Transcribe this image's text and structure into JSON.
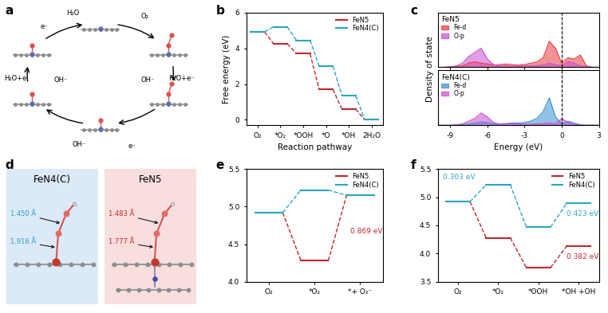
{
  "chart_data": [
    {
      "panel": "b",
      "type": "step",
      "xlabel": "Reaction pathway",
      "ylabel": "Free energy (eV)",
      "categories": [
        "O₂",
        "*O₂",
        "*OOH",
        "*O",
        "*OH",
        "2H₂O"
      ],
      "series": [
        {
          "name": "FeN5",
          "color": "#c1272d",
          "values": [
            4.92,
            4.25,
            3.7,
            1.7,
            0.6,
            0
          ]
        },
        {
          "name": "FeN4(C)",
          "color": "#2ba6c4",
          "values": [
            4.92,
            5.2,
            4.45,
            3.0,
            1.35,
            0
          ]
        }
      ],
      "ylim": [
        -0.3,
        6
      ],
      "yticks": [
        0,
        2,
        4,
        6
      ],
      "legend": "upper right"
    },
    {
      "panel": "c",
      "type": "area",
      "xlabel": "Energy (eV)",
      "ylabel": "Density of state",
      "x": [
        -10,
        -9.5,
        -9,
        -8.5,
        -8,
        -7.5,
        -7,
        -6.5,
        -6,
        -5.5,
        -5,
        -4.5,
        -4,
        -3.5,
        -3,
        -2.5,
        -2,
        -1.5,
        -1,
        -0.5,
        0,
        0.5,
        1,
        1.5,
        2,
        2.5,
        3
      ],
      "xlim": [
        -10,
        3
      ],
      "xticks": [
        -9,
        -6,
        -3,
        0,
        3
      ],
      "ylim": [
        0,
        2
      ],
      "tick_labels": "x",
      "fermi_level": 0,
      "legend": "upper left",
      "subplots": [
        {
          "name": "FeN5",
          "series": [
            {
              "name": "Fe-d",
              "color": "#e8393f",
              "values": [
                0,
                0,
                0.02,
                0.03,
                0.05,
                0.15,
                0.2,
                0.15,
                0.12,
                0.08,
                0.1,
                0.12,
                0.1,
                0.08,
                0.1,
                0.15,
                0.2,
                0.35,
                0.95,
                0.7,
                0.15,
                0.35,
                0.3,
                0.45,
                0.05,
                0,
                0
              ]
            },
            {
              "name": "O-p",
              "color": "#c84fd0",
              "values": [
                0,
                0,
                0.02,
                0.05,
                0.15,
                0.4,
                0.55,
                0.7,
                0.3,
                0.1,
                0.05,
                0.05,
                0.04,
                0.04,
                0.05,
                0.05,
                0.06,
                0.08,
                0.15,
                0.1,
                0.05,
                0.2,
                0.15,
                0.05,
                0.02,
                0,
                0
              ]
            }
          ]
        },
        {
          "name": "FeN4(C)",
          "series": [
            {
              "name": "Fe-d",
              "color": "#3a8fd0",
              "values": [
                0,
                0,
                0,
                0.01,
                0.02,
                0.05,
                0.08,
                0.12,
                0.1,
                0.05,
                0.05,
                0.06,
                0.08,
                0.08,
                0.1,
                0.15,
                0.25,
                0.5,
                1.0,
                0.3,
                0.05,
                0.15,
                0.08,
                0.02,
                0,
                0,
                0
              ]
            },
            {
              "name": "O-p",
              "color": "#c84fd0",
              "values": [
                0,
                0,
                0,
                0.02,
                0.05,
                0.15,
                0.25,
                0.45,
                0.3,
                0.1,
                0.04,
                0.05,
                0.06,
                0.05,
                0.04,
                0.04,
                0.05,
                0.06,
                0.08,
                0.05,
                0.25,
                0.1,
                0.03,
                0.01,
                0,
                0,
                0
              ]
            }
          ]
        }
      ]
    },
    {
      "panel": "e",
      "type": "step",
      "categories": [
        "O₂",
        "*O₂",
        "*+ O₂⁻"
      ],
      "series": [
        {
          "name": "FeN5",
          "color": "#c1272d",
          "values": [
            4.92,
            4.28,
            5.15
          ]
        },
        {
          "name": "FeN4(C)",
          "color": "#2ba6c4",
          "values": [
            4.92,
            5.22,
            5.15
          ]
        }
      ],
      "ylim": [
        4.0,
        5.5
      ],
      "yticks": [
        {
          "value": 4.0,
          "label": "4.0"
        },
        4.5,
        {
          "value": 5.0,
          "label": "5.0"
        },
        5.5
      ],
      "legend": "upper right",
      "annotations": [
        {
          "text": "0.869 eV",
          "series": "FeN5"
        }
      ]
    },
    {
      "panel": "f",
      "type": "step",
      "categories": [
        "O₂",
        "*O₂",
        "*OOH",
        "*OH +OH"
      ],
      "series": [
        {
          "name": "FeN5",
          "color": "#c1272d",
          "values": [
            4.92,
            4.28,
            3.75,
            4.13
          ]
        },
        {
          "name": "FeN4(C)",
          "color": "#2ba6c4",
          "values": [
            4.92,
            5.22,
            4.47,
            4.89
          ]
        }
      ],
      "ylim": [
        3.5,
        5.5
      ],
      "yticks": [
        3.5,
        {
          "value": 4.0,
          "label": "4.0"
        },
        4.5,
        {
          "value": 5.0,
          "label": "5.0"
        },
        5.5
      ],
      "legend": "upper right",
      "annotations": [
        {
          "text": "0.303 eV",
          "series": "FeN4(C)"
        },
        {
          "text": "0.423 eV",
          "series": "FeN4(C)"
        },
        {
          "text": "0.382 eV",
          "series": "FeN5"
        }
      ]
    }
  ],
  "diagrams": {
    "a": {
      "panel": "a",
      "labels": [
        "H₂O",
        "e⁻",
        "O₂",
        "H₂O+e⁻",
        "OH⁻",
        "OH⁻",
        "e⁻",
        "H₂O+e",
        "OH⁻"
      ]
    },
    "d": {
      "panel": "d",
      "structures": [
        {
          "name": "FeN4(C)",
          "bond_labels": [
            "1.450 Å",
            "1.916 Å"
          ]
        },
        {
          "name": "FeN5",
          "bond_labels": [
            "1.483 Å",
            "1.777 Å"
          ]
        }
      ]
    }
  }
}
